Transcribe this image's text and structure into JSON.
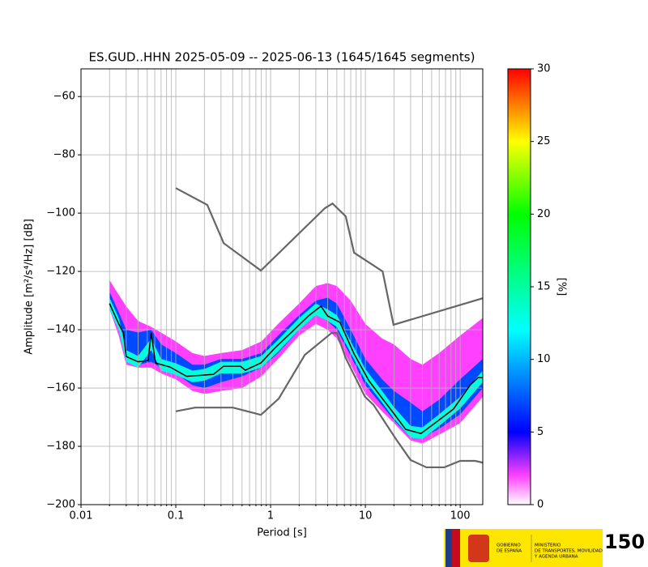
{
  "chart_data": {
    "type": "ppsd",
    "title": "ES.GUD..HHN   2025-05-09 -- 2025-06-13  (1645/1645 segments)",
    "xlabel": "Period [s]",
    "ylabel": "Amplitude [m²/s⁴/Hz] [dB]",
    "xscale": "log",
    "xlim": [
      0.01,
      173
    ],
    "ylim": [
      -200,
      -50.5
    ],
    "xticks": [
      0.01,
      0.1,
      1,
      10,
      100
    ],
    "xminorticks": [
      0.02,
      0.03,
      0.04,
      0.05,
      0.06,
      0.07,
      0.08,
      0.09,
      0.2,
      0.3,
      0.4,
      0.5,
      0.6,
      0.7,
      0.8,
      0.9,
      2,
      3,
      4,
      5,
      6,
      7,
      8,
      9,
      20,
      30,
      40,
      50,
      60,
      70,
      80,
      90
    ],
    "yticks": [
      {
        "value": -200,
        "label": "−200"
      },
      {
        "value": -180,
        "label": "−180"
      },
      {
        "value": -160,
        "label": "−160"
      },
      {
        "value": -140,
        "label": "−140"
      },
      {
        "value": -120,
        "label": "−120"
      },
      {
        "value": -100,
        "label": "−100"
      },
      {
        "value": -80,
        "label": "−80"
      },
      {
        "value": -60,
        "label": "−60"
      }
    ],
    "grid": true,
    "density_x": [
      0.02,
      0.025,
      0.03,
      0.04,
      0.055,
      0.07,
      0.1,
      0.15,
      0.2,
      0.3,
      0.5,
      0.8,
      1.2,
      2,
      3,
      4,
      5,
      7,
      10,
      15,
      20,
      30,
      40,
      60,
      100,
      173
    ],
    "bands": [
      {
        "percent": 2,
        "upper": [
          -123,
          -128,
          -132,
          -137,
          -139,
          -141,
          -144,
          -148,
          -149,
          -148,
          -147,
          -144,
          -138,
          -131,
          -125,
          -124,
          -125,
          -130,
          -138,
          -143,
          -145,
          -150,
          -152,
          -148,
          -142,
          -136
        ],
        "lower": [
          -133,
          -142,
          -152,
          -153,
          -153,
          -155,
          -157,
          -161,
          -162,
          -161,
          -160,
          -156,
          -150,
          -142,
          -138,
          -140,
          -143,
          -152,
          -162,
          -168,
          -172,
          -178,
          -179,
          -176,
          -172,
          -163
        ]
      },
      {
        "percent": 7,
        "upper": [
          -127,
          -134,
          -140,
          -141,
          -140,
          -145,
          -148,
          -152,
          -152,
          -150,
          -150,
          -148,
          -142,
          -135,
          -130,
          -129,
          -131,
          -140,
          -150,
          -157,
          -161,
          -165,
          -168,
          -164,
          -157,
          -150
        ],
        "lower": [
          -131,
          -140,
          -150,
          -152,
          -151,
          -153,
          -155,
          -159,
          -160,
          -158,
          -156,
          -153,
          -148,
          -140,
          -135,
          -137,
          -140,
          -149,
          -159,
          -166,
          -171,
          -177,
          -177,
          -174,
          -169,
          -160
        ]
      },
      {
        "percent": 13,
        "upper": [
          -129,
          -136,
          -147,
          -149,
          -143,
          -150,
          -151.5,
          -154,
          -153.5,
          -151,
          -151,
          -149,
          -143.5,
          -136,
          -131,
          -133,
          -135,
          -144,
          -153.5,
          -161,
          -166.5,
          -173,
          -173.5,
          -169,
          -163,
          -154
        ],
        "lower": [
          -133,
          -140,
          -151,
          -153,
          -147,
          -154,
          -155.5,
          -158,
          -157.5,
          -155,
          -155,
          -153,
          -147.5,
          -140,
          -135,
          -137,
          -139,
          -148,
          -157.5,
          -165,
          -170.5,
          -177,
          -177.5,
          -173,
          -167,
          -158
        ]
      }
    ],
    "series": [
      {
        "color": "#666666",
        "x": [
          0.1,
          0.215,
          0.32,
          0.79,
          3.74,
          4.5,
          6.2,
          7.6,
          15.2,
          19.8,
          173
        ],
        "values": [
          -91.4,
          -97.2,
          -110.3,
          -119.7,
          -98.3,
          -96.7,
          -101.1,
          -113.6,
          -120,
          -138.3,
          -129.2
        ]
      },
      {
        "color": "#666666",
        "x": [
          0.1,
          0.16,
          0.4,
          0.79,
          1.22,
          2.3,
          4.4,
          5,
          6.2,
          9.9,
          12.2,
          21,
          30,
          44,
          68,
          100,
          144,
          173
        ],
        "values": [
          -168,
          -166.7,
          -166.7,
          -169.2,
          -163.6,
          -148.6,
          -141.1,
          -141.1,
          -149.7,
          -163,
          -165.8,
          -177.5,
          -184.7,
          -187.2,
          -187.2,
          -185,
          -185,
          -185.6
        ]
      },
      {
        "color": "#000000",
        "x": [
          0.02,
          0.025,
          0.028,
          0.03,
          0.04,
          0.051,
          0.055,
          0.061,
          0.087,
          0.13,
          0.19,
          0.25,
          0.32,
          0.48,
          0.54,
          0.79,
          1.1,
          1.67,
          2.5,
          3.4,
          4,
          5.4,
          7.6,
          10.9,
          14.6,
          19.8,
          26.6,
          38.6,
          57.5,
          85,
          128,
          155,
          173
        ],
        "values": [
          -131,
          -138,
          -141,
          -149.2,
          -151,
          -150.6,
          -141,
          -151.4,
          -152.8,
          -156,
          -155.6,
          -155.3,
          -152.5,
          -152.5,
          -153.9,
          -151.4,
          -146.4,
          -140.8,
          -135.3,
          -131.9,
          -135.3,
          -137.5,
          -148.3,
          -157.5,
          -163,
          -168.6,
          -174.2,
          -175.6,
          -171.4,
          -167.2,
          -158.9,
          -156.4,
          -156.4
        ]
      }
    ],
    "colorbar": {
      "label": "[%]",
      "lim": [
        0,
        30
      ],
      "ticks": [
        0,
        5,
        10,
        15,
        20,
        25,
        30
      ],
      "color_stops": [
        [
          0,
          "#ffffff"
        ],
        [
          2,
          "#ff40ff"
        ],
        [
          5,
          "#0000ff"
        ],
        [
          12,
          "#00ffff"
        ],
        [
          20,
          "#00ff00"
        ],
        [
          25,
          "#ffff00"
        ],
        [
          30,
          "#ff0000"
        ]
      ]
    }
  },
  "footer": {
    "gov": [
      "GOBIERNO",
      "DE ESPAÑA"
    ],
    "ministry": [
      "MINISTERIO",
      "DE TRANSPORTES, MOVILIDAD",
      "Y AGENDA URBANA"
    ],
    "anniversary": "150"
  }
}
